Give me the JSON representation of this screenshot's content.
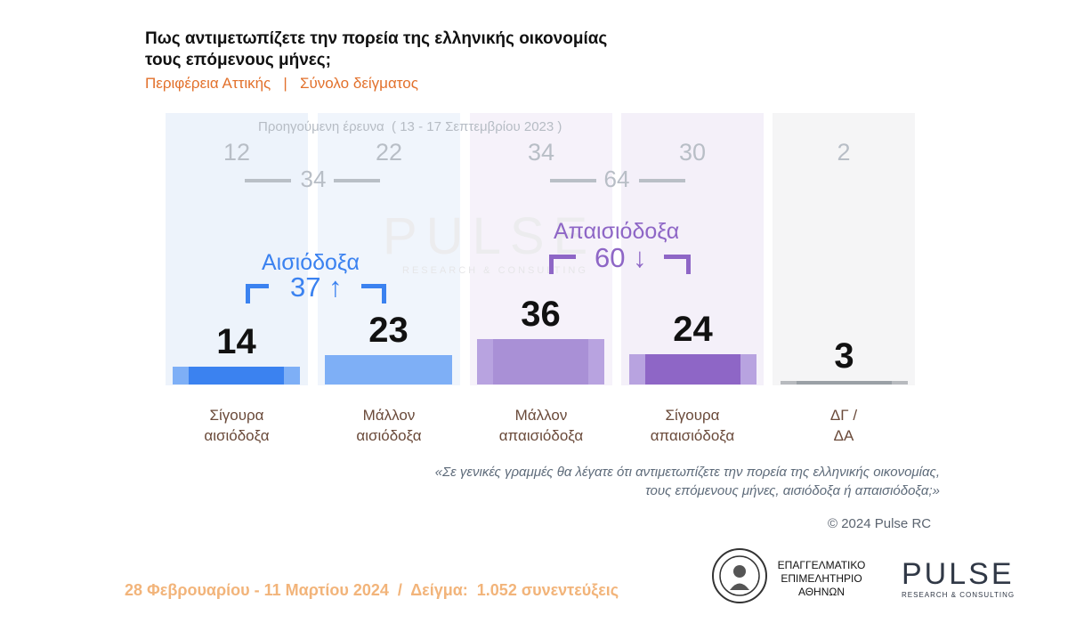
{
  "header": {
    "title": "Πως αντιμετωπίζετε την πορεία της ελληνικής οικονομίας τους επόμενους μήνες;",
    "subtitle": "Περιφέρεια Αττικής   |   Σύνολο δείγματος"
  },
  "colors": {
    "optimistic_strong": "#3b82f0",
    "optimistic_weak": "#7eaff6",
    "pessimistic_weak": "#a990d6",
    "pessimistic_strong": "#8e66c6",
    "dk": "#9aa0a6",
    "accent_orange": "#e2712c"
  },
  "previous": {
    "title": "Προηγούμενη έρευνα  ( 13 - 17 Σεπτεμβρίου 2023 )",
    "values": [
      "12",
      "22",
      "34",
      "30",
      "2"
    ],
    "optimistic_total": "34",
    "pessimistic_total": "64"
  },
  "watermark": {
    "brand": "PULSE",
    "tagline": "RESEARCH & CONSULTING"
  },
  "groups": {
    "optimistic": {
      "label": "Αισιόδοξα",
      "value": "37 ↑"
    },
    "pessimistic": {
      "label": "Απαισιόδοξα",
      "value": "60 ↓"
    }
  },
  "chart_data": {
    "type": "bar",
    "categories": [
      "Σίγουρα αισιόδοξα",
      "Μάλλον αισιόδοξα",
      "Μάλλον απαισιόδοξα",
      "Σίγουρα απαισιόδοξα",
      "ΔΓ / ΔΑ"
    ],
    "category_lines": [
      [
        "Σίγουρα",
        "αισιόδοξα"
      ],
      [
        "Μάλλον",
        "αισιόδοξα"
      ],
      [
        "Μάλλον",
        "απαισιόδοξα"
      ],
      [
        "Σίγουρα",
        "απαισιόδοξα"
      ],
      [
        "ΔΓ /",
        "ΔΑ"
      ]
    ],
    "values": [
      14,
      23,
      36,
      24,
      3
    ],
    "previous_values": [
      12,
      22,
      34,
      30,
      2
    ],
    "ylim": [
      0,
      100
    ],
    "grid": false
  },
  "question": {
    "line1": "«Σε γενικές γραμμές θα λέγατε ότι αντιμετωπίζετε την πορεία της ελληνικής οικονομίας,",
    "line2": "τους επόμενους μήνες, αισιόδοξα ή απαισιόδοξα;»"
  },
  "copyright": "© 2024 Pulse RC",
  "footer": "28 Φεβρουαρίου - 11 Μαρτίου 2024  /  Δείγμα:  1.052 συνεντεύξεις",
  "logos": {
    "chamber_lines": [
      "ΕΠΑΓΓΕΛΜΑΤΙΚΟ",
      "ΕΠΙΜΕΛΗΤΗΡΙΟ",
      "ΑΘΗΝΩΝ"
    ],
    "pulse": "PULSE",
    "pulse_sub": "RESEARCH & CONSULTING"
  }
}
